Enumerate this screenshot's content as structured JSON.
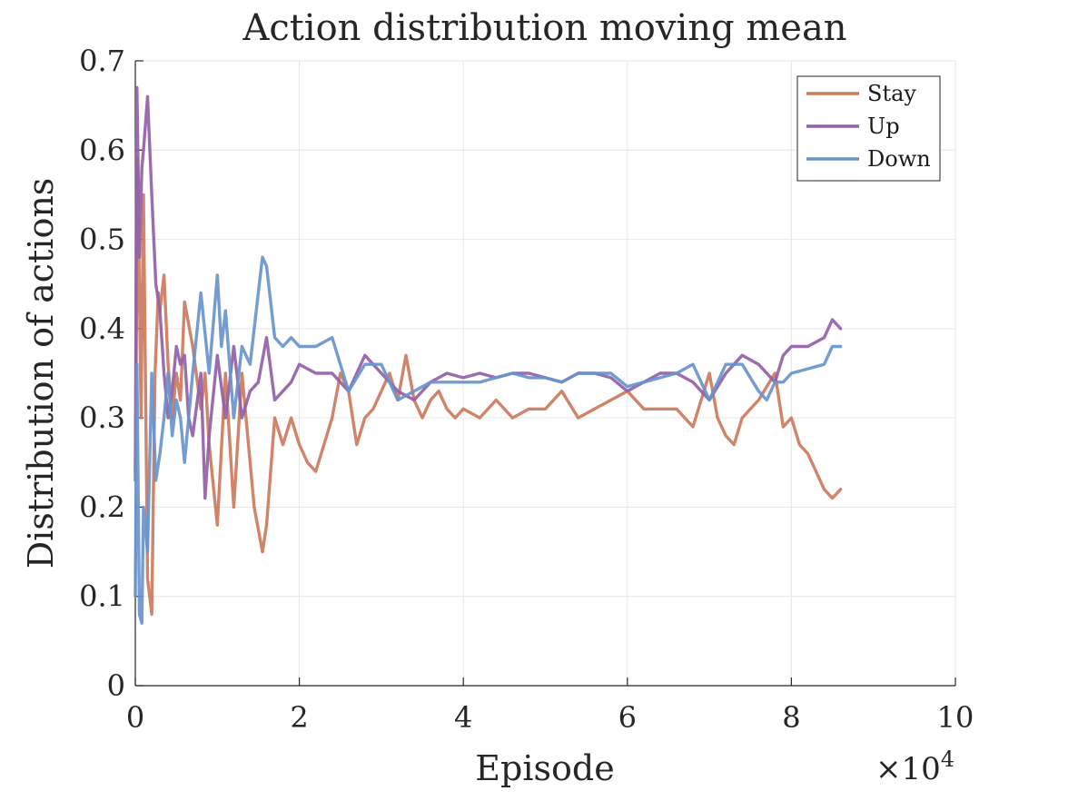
{
  "chart_data": {
    "type": "line",
    "title": "Action distribution moving mean",
    "xlabel": "Episode",
    "ylabel": "Distribution of actions",
    "x_exponent_label": "×10",
    "x_exponent_power": "4",
    "xlim": [
      0,
      10
    ],
    "ylim": [
      0,
      0.7
    ],
    "xticks": [
      0,
      2,
      4,
      6,
      8,
      10
    ],
    "xtick_labels": [
      "0",
      "2",
      "4",
      "6",
      "8",
      "10"
    ],
    "yticks": [
      0,
      0.1,
      0.2,
      0.3,
      0.4,
      0.5,
      0.6,
      0.7
    ],
    "ytick_labels": [
      "0",
      "0.1",
      "0.2",
      "0.3",
      "0.4",
      "0.5",
      "0.6",
      "0.7"
    ],
    "grid": true,
    "legend_position": "top-right",
    "series": [
      {
        "name": "Stay",
        "color": "#cc7a5c",
        "x": [
          0,
          0.03,
          0.07,
          0.1,
          0.15,
          0.2,
          0.24,
          0.28,
          0.3,
          0.35,
          0.4,
          0.45,
          0.5,
          0.55,
          0.6,
          0.7,
          0.8,
          0.85,
          0.9,
          1.0,
          1.1,
          1.2,
          1.3,
          1.35,
          1.45,
          1.55,
          1.6,
          1.7,
          1.8,
          1.9,
          2.0,
          2.1,
          2.2,
          2.3,
          2.4,
          2.5,
          2.6,
          2.7,
          2.8,
          2.9,
          3.0,
          3.1,
          3.2,
          3.3,
          3.4,
          3.5,
          3.6,
          3.7,
          3.8,
          3.9,
          4.0,
          4.2,
          4.4,
          4.6,
          4.8,
          5.0,
          5.2,
          5.4,
          5.6,
          5.8,
          6.0,
          6.2,
          6.4,
          6.6,
          6.8,
          7.0,
          7.1,
          7.2,
          7.3,
          7.4,
          7.6,
          7.8,
          7.9,
          8.0,
          8.1,
          8.2,
          8.3,
          8.4,
          8.5,
          8.6
        ],
        "values": [
          0.24,
          0.59,
          0.3,
          0.55,
          0.12,
          0.08,
          0.35,
          0.44,
          0.42,
          0.46,
          0.36,
          0.3,
          0.35,
          0.32,
          0.43,
          0.38,
          0.31,
          0.35,
          0.27,
          0.18,
          0.35,
          0.2,
          0.35,
          0.3,
          0.2,
          0.15,
          0.18,
          0.3,
          0.27,
          0.3,
          0.27,
          0.25,
          0.24,
          0.27,
          0.3,
          0.35,
          0.33,
          0.27,
          0.3,
          0.31,
          0.33,
          0.35,
          0.32,
          0.37,
          0.32,
          0.3,
          0.32,
          0.33,
          0.31,
          0.3,
          0.31,
          0.3,
          0.32,
          0.3,
          0.31,
          0.31,
          0.33,
          0.3,
          0.31,
          0.32,
          0.33,
          0.31,
          0.31,
          0.31,
          0.29,
          0.35,
          0.3,
          0.28,
          0.27,
          0.3,
          0.32,
          0.35,
          0.29,
          0.3,
          0.27,
          0.26,
          0.24,
          0.22,
          0.21,
          0.22
        ]
      },
      {
        "name": "Up",
        "color": "#9261a8",
        "x": [
          0,
          0.02,
          0.05,
          0.08,
          0.1,
          0.15,
          0.2,
          0.25,
          0.3,
          0.35,
          0.4,
          0.45,
          0.5,
          0.55,
          0.6,
          0.65,
          0.7,
          0.8,
          0.85,
          0.9,
          1.0,
          1.1,
          1.2,
          1.3,
          1.4,
          1.5,
          1.6,
          1.7,
          1.8,
          1.9,
          2.0,
          2.2,
          2.4,
          2.6,
          2.8,
          3.0,
          3.2,
          3.4,
          3.6,
          3.8,
          4.0,
          4.2,
          4.4,
          4.6,
          4.8,
          5.0,
          5.2,
          5.4,
          5.6,
          5.8,
          6.0,
          6.2,
          6.4,
          6.6,
          6.8,
          7.0,
          7.2,
          7.4,
          7.6,
          7.7,
          7.8,
          7.9,
          8.0,
          8.2,
          8.4,
          8.5,
          8.6
        ],
        "values": [
          0.23,
          0.67,
          0.48,
          0.58,
          0.6,
          0.66,
          0.55,
          0.45,
          0.42,
          0.35,
          0.3,
          0.33,
          0.38,
          0.36,
          0.37,
          0.3,
          0.28,
          0.35,
          0.21,
          0.28,
          0.37,
          0.3,
          0.38,
          0.3,
          0.33,
          0.34,
          0.39,
          0.32,
          0.33,
          0.34,
          0.36,
          0.35,
          0.35,
          0.33,
          0.37,
          0.35,
          0.33,
          0.32,
          0.34,
          0.35,
          0.345,
          0.35,
          0.345,
          0.35,
          0.35,
          0.345,
          0.34,
          0.35,
          0.35,
          0.345,
          0.33,
          0.34,
          0.35,
          0.35,
          0.34,
          0.32,
          0.35,
          0.37,
          0.36,
          0.35,
          0.34,
          0.37,
          0.38,
          0.38,
          0.39,
          0.41,
          0.4
        ]
      },
      {
        "name": "Down",
        "color": "#6894cc",
        "x": [
          0,
          0.02,
          0.05,
          0.08,
          0.1,
          0.15,
          0.2,
          0.25,
          0.3,
          0.35,
          0.4,
          0.45,
          0.5,
          0.55,
          0.6,
          0.65,
          0.7,
          0.8,
          0.9,
          1.0,
          1.05,
          1.1,
          1.2,
          1.3,
          1.4,
          1.5,
          1.55,
          1.6,
          1.7,
          1.8,
          1.9,
          2.0,
          2.2,
          2.4,
          2.6,
          2.8,
          3.0,
          3.2,
          3.4,
          3.6,
          3.8,
          4.0,
          4.2,
          4.4,
          4.6,
          4.8,
          5.0,
          5.2,
          5.4,
          5.6,
          5.8,
          6.0,
          6.2,
          6.4,
          6.6,
          6.8,
          7.0,
          7.2,
          7.4,
          7.6,
          7.7,
          7.8,
          7.9,
          8.0,
          8.2,
          8.4,
          8.5,
          8.6
        ],
        "values": [
          0.1,
          0.36,
          0.08,
          0.07,
          0.2,
          0.15,
          0.35,
          0.23,
          0.26,
          0.3,
          0.35,
          0.28,
          0.32,
          0.3,
          0.25,
          0.3,
          0.35,
          0.44,
          0.35,
          0.46,
          0.38,
          0.42,
          0.3,
          0.38,
          0.36,
          0.44,
          0.48,
          0.47,
          0.39,
          0.38,
          0.39,
          0.38,
          0.38,
          0.39,
          0.33,
          0.36,
          0.36,
          0.32,
          0.33,
          0.34,
          0.34,
          0.34,
          0.34,
          0.345,
          0.35,
          0.345,
          0.345,
          0.34,
          0.35,
          0.35,
          0.35,
          0.335,
          0.34,
          0.345,
          0.35,
          0.36,
          0.32,
          0.36,
          0.36,
          0.33,
          0.32,
          0.34,
          0.34,
          0.35,
          0.355,
          0.36,
          0.38,
          0.38
        ]
      }
    ]
  }
}
